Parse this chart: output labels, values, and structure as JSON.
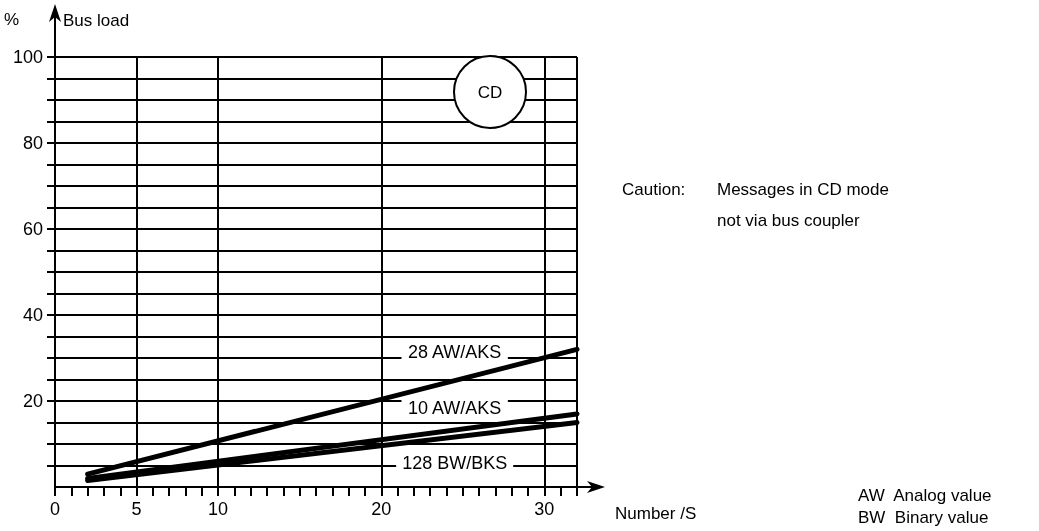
{
  "chart_data": {
    "type": "line",
    "xlabel": "Number /S",
    "ylabel": "Bus load",
    "xlim": [
      0,
      32
    ],
    "ylim": [
      0,
      100
    ],
    "xticks": [
      0,
      {
        "value": 1,
        "label": null
      },
      {
        "value": 2,
        "label": null
      },
      {
        "value": 3,
        "label": null
      },
      {
        "value": 4,
        "label": null
      },
      5,
      {
        "value": 6,
        "label": null
      },
      {
        "value": 7,
        "label": null
      },
      {
        "value": 8,
        "label": null
      },
      {
        "value": 9,
        "label": null
      },
      10,
      {
        "value": 11,
        "label": null
      },
      {
        "value": 12,
        "label": null
      },
      {
        "value": 13,
        "label": null
      },
      {
        "value": 14,
        "label": null
      },
      {
        "value": 15,
        "label": null
      },
      {
        "value": 16,
        "label": null
      },
      {
        "value": 17,
        "label": null
      },
      {
        "value": 18,
        "label": null
      },
      {
        "value": 19,
        "label": null
      },
      20,
      {
        "value": 21,
        "label": null
      },
      {
        "value": 22,
        "label": null
      },
      {
        "value": 23,
        "label": null
      },
      {
        "value": 24,
        "label": null
      },
      {
        "value": 25,
        "label": null
      },
      {
        "value": 26,
        "label": null
      },
      {
        "value": 27,
        "label": null
      },
      {
        "value": 28,
        "label": null
      },
      {
        "value": 29,
        "label": null
      },
      30,
      {
        "value": 31,
        "label": null
      },
      {
        "value": 32,
        "label": null
      }
    ],
    "yticks": [
      {
        "value": 5,
        "label": null
      },
      {
        "value": 10,
        "label": null
      },
      {
        "value": 15,
        "label": null
      },
      20,
      {
        "value": 25,
        "label": null
      },
      {
        "value": 30,
        "label": null
      },
      {
        "value": 35,
        "label": null
      },
      40,
      {
        "value": 45,
        "label": null
      },
      {
        "value": 50,
        "label": null
      },
      {
        "value": 55,
        "label": null
      },
      60,
      {
        "value": 65,
        "label": null
      },
      {
        "value": 70,
        "label": null
      },
      {
        "value": 75,
        "label": null
      },
      80,
      {
        "value": 85,
        "label": null
      },
      {
        "value": 90,
        "label": null
      },
      {
        "value": 95,
        "label": null
      },
      100
    ],
    "x": [
      2,
      32
    ],
    "grid": true,
    "marker": "none",
    "line_style": "solid",
    "series": [
      {
        "name": "28 AW/AKS",
        "color": "#000000",
        "values": [
          3,
          32
        ]
      },
      {
        "name": "10 AW/AKS",
        "color": "#000000",
        "values": [
          2,
          17
        ]
      },
      {
        "name": "128 BW/BKS",
        "color": "#000000",
        "values": [
          1.5,
          15
        ]
      }
    ],
    "annotations": [
      "%",
      "CD",
      "Caution: Messages in CD mode\nnot via bus coupler",
      "AW  Analog value",
      "BW  Binary value"
    ]
  }
}
